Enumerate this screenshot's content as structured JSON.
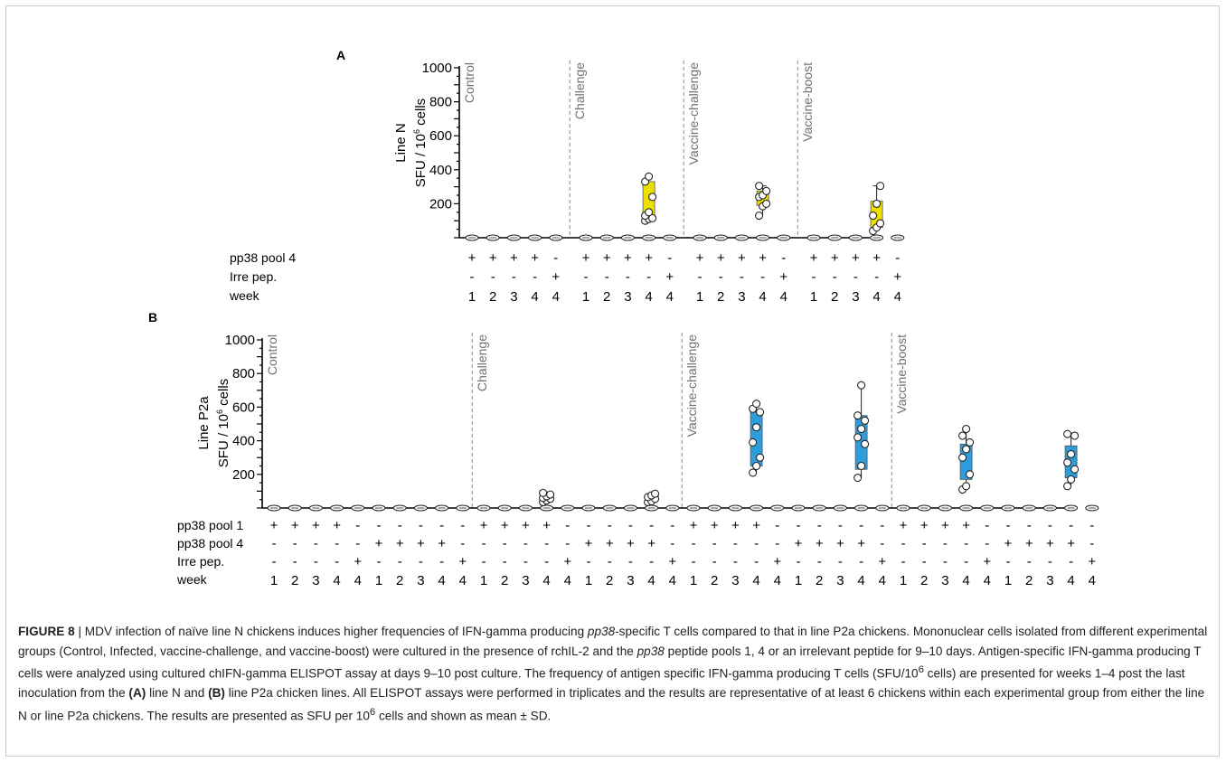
{
  "colors": {
    "axis": "#000000",
    "divider": "#8a8a8a",
    "panelA_box": "#ece000",
    "panelB_box": "#2e9ddb",
    "point_fill": "#ffffff",
    "point_stroke": "#222222",
    "group_label": "#707070"
  },
  "chart_data": [
    {
      "panel": "A",
      "type": "box",
      "ylabel_line1": "Line N",
      "ylabel_line2_pre": "SFU / 10",
      "ylabel_line2_sup": "6",
      "ylabel_line2_post": " cells",
      "ylim": [
        0,
        1000
      ],
      "yticks": [
        200,
        400,
        600,
        800,
        1000
      ],
      "groups": [
        {
          "label": "Control",
          "start": 0
        },
        {
          "label": "Challenge",
          "start": 5
        },
        {
          "label": "Vaccine-challenge",
          "start": 10
        },
        {
          "label": "Vaccine-boost",
          "start": 15
        }
      ],
      "row_labels": [
        "pp38 pool 4",
        "Irre pep.",
        "week"
      ],
      "row_values": [
        [
          "+",
          "+",
          "+",
          "+",
          "-",
          "+",
          "+",
          "+",
          "+",
          "-",
          "+",
          "+",
          "+",
          "+",
          "-",
          "+",
          "+",
          "+",
          "+",
          "-"
        ],
        [
          "-",
          "-",
          "-",
          "-",
          "+",
          "-",
          "-",
          "-",
          "-",
          "+",
          "-",
          "-",
          "-",
          "-",
          "+",
          "-",
          "-",
          "-",
          "-",
          "+"
        ],
        [
          "1",
          "2",
          "3",
          "4",
          "4",
          "1",
          "2",
          "3",
          "4",
          "4",
          "1",
          "2",
          "3",
          "4",
          "4",
          "1",
          "2",
          "3",
          "4",
          "4"
        ]
      ],
      "boxes": [
        {
          "pos": 8,
          "whisker_low": 110,
          "q1": 120,
          "q3": 330,
          "whisker_high": 370,
          "points": [
            100,
            110,
            115,
            130,
            150,
            240,
            330,
            360
          ]
        },
        {
          "pos": 13,
          "whisker_low": 130,
          "q1": 190,
          "q3": 275,
          "whisker_high": 305,
          "points": [
            130,
            185,
            200,
            240,
            250,
            275,
            305
          ]
        },
        {
          "pos": 18,
          "whisker_low": 40,
          "q1": 60,
          "q3": 215,
          "whisker_high": 305,
          "points": [
            40,
            60,
            85,
            130,
            200,
            305
          ]
        }
      ]
    },
    {
      "panel": "B",
      "type": "box",
      "ylabel_line1": "Line P2a",
      "ylabel_line2_pre": "SFU / 10",
      "ylabel_line2_sup": "6",
      "ylabel_line2_post": " cells",
      "ylim": [
        0,
        1000
      ],
      "yticks": [
        200,
        400,
        600,
        800,
        1000
      ],
      "groups": [
        {
          "label": "Control",
          "start": 0
        },
        {
          "label": "Challenge",
          "start": 10
        },
        {
          "label": "Vaccine-challenge",
          "start": 20
        },
        {
          "label": "Vaccine-boost",
          "start": 30
        }
      ],
      "row_labels": [
        "pp38 pool 1",
        "pp38 pool 4",
        "Irre pep.",
        "week"
      ],
      "row_values": [
        [
          "+",
          "+",
          "+",
          "+",
          "-",
          "-",
          "-",
          "-",
          "-",
          "-",
          "+",
          "+",
          "+",
          "+",
          "-",
          "-",
          "-",
          "-",
          "-",
          "-",
          "+",
          "+",
          "+",
          "+",
          "-",
          "-",
          "-",
          "-",
          "-",
          "-",
          "+",
          "+",
          "+",
          "+",
          "-",
          "-",
          "-",
          "-",
          "-",
          "-"
        ],
        [
          "-",
          "-",
          "-",
          "-",
          "-",
          "+",
          "+",
          "+",
          "+",
          "-",
          "-",
          "-",
          "-",
          "-",
          "-",
          "+",
          "+",
          "+",
          "+",
          "-",
          "-",
          "-",
          "-",
          "-",
          "-",
          "+",
          "+",
          "+",
          "+",
          "-",
          "-",
          "-",
          "-",
          "-",
          "-",
          "+",
          "+",
          "+",
          "+",
          "-"
        ],
        [
          "-",
          "-",
          "-",
          "-",
          "+",
          "-",
          "-",
          "-",
          "-",
          "+",
          "-",
          "-",
          "-",
          "-",
          "+",
          "-",
          "-",
          "-",
          "-",
          "+",
          "-",
          "-",
          "-",
          "-",
          "+",
          "-",
          "-",
          "-",
          "-",
          "+",
          "-",
          "-",
          "-",
          "-",
          "+",
          "-",
          "-",
          "-",
          "-",
          "+"
        ],
        [
          "1",
          "2",
          "3",
          "4",
          "4",
          "1",
          "2",
          "3",
          "4",
          "4",
          "1",
          "2",
          "3",
          "4",
          "4",
          "1",
          "2",
          "3",
          "4",
          "4",
          "1",
          "2",
          "3",
          "4",
          "4",
          "1",
          "2",
          "3",
          "4",
          "4",
          "1",
          "2",
          "3",
          "4",
          "4",
          "1",
          "2",
          "3",
          "4",
          "4"
        ]
      ],
      "boxes": [
        {
          "pos": 13,
          "whisker_low": 35,
          "q1": 40,
          "q3": 75,
          "whisker_high": 90,
          "points": [
            35,
            45,
            55,
            60,
            70,
            80,
            90
          ]
        },
        {
          "pos": 18,
          "whisker_low": 35,
          "q1": 40,
          "q3": 70,
          "whisker_high": 85,
          "points": [
            35,
            40,
            55,
            65,
            75,
            85
          ]
        },
        {
          "pos": 23,
          "whisker_low": 210,
          "q1": 250,
          "q3": 570,
          "whisker_high": 620,
          "points": [
            210,
            250,
            300,
            390,
            480,
            570,
            590,
            620
          ]
        },
        {
          "pos": 28,
          "whisker_low": 180,
          "q1": 230,
          "q3": 550,
          "whisker_high": 730,
          "points": [
            180,
            250,
            380,
            420,
            470,
            520,
            550,
            730
          ]
        },
        {
          "pos": 33,
          "whisker_low": 110,
          "q1": 170,
          "q3": 380,
          "whisker_high": 470,
          "points": [
            110,
            130,
            200,
            300,
            350,
            390,
            430,
            470
          ]
        },
        {
          "pos": 38,
          "whisker_low": 130,
          "q1": 180,
          "q3": 370,
          "whisker_high": 440,
          "points": [
            130,
            170,
            230,
            270,
            320,
            430,
            440
          ]
        }
      ]
    }
  ],
  "caption": {
    "figure_label": "FIGURE 8",
    "sep": " | ",
    "s1": "MDV infection of naïve line N chickens induces higher frequencies of IFN-gamma producing ",
    "s1_italic": "pp38",
    "s2": "-specific T cells compared to that in line P2a chickens. Mononuclear cells isolated from different experimental groups (Control, Infected, vaccine-challenge, and vaccine-boost) were cultured in the presence of rchIL-2 and the ",
    "s2_italic": "pp38",
    "s3": " peptide pools 1, 4 or an irrelevant peptide for 9–10 days. Antigen-specific IFN-gamma producing T cells were analyzed using cultured chIFN-gamma ELISPOT assay at days 9–10 post culture. The frequency of antigen specific IFN-gamma producing T cells (SFU/10",
    "s3_sup": "6",
    "s4": " cells) are presented for weeks 1–4 post the last inoculation from the ",
    "s4_bold": "(A)",
    "s5": " line N and ",
    "s5_bold": "(B)",
    "s6": " line P2a chicken lines. All ELISPOT assays were performed in triplicates and the results are representative of at least 6 chickens within each experimental group from either the line N or line P2a chickens. The results are presented as SFU per 10",
    "s6_sup": "6",
    "s7": " cells and shown as mean ± SD."
  }
}
